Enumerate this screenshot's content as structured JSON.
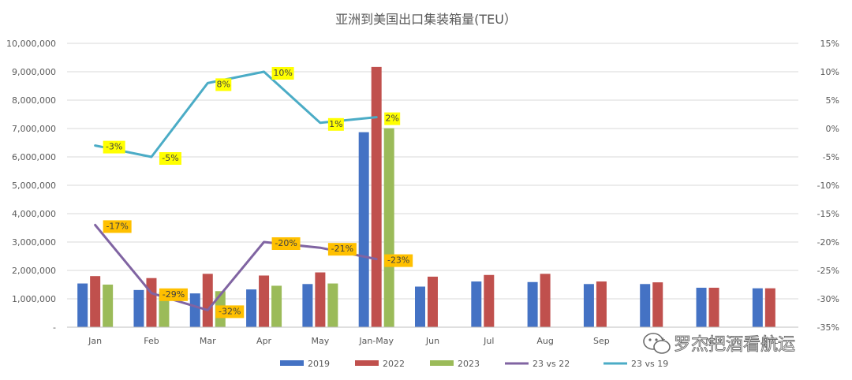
{
  "chart_data": {
    "type": "bar+line",
    "title": "亚洲到美国出口集装箱量(TEU）",
    "categories": [
      "Jan",
      "Feb",
      "Mar",
      "Apr",
      "May",
      "Jan-May",
      "Jun",
      "Jul",
      "Aug",
      "Sep",
      "Oct",
      "Nov",
      "Dec"
    ],
    "left_axis": {
      "min": 0,
      "max": 10000000,
      "step": 1000000,
      "tick_labels": [
        "-",
        "1,000,000",
        "2,000,000",
        "3,000,000",
        "4,000,000",
        "5,000,000",
        "6,000,000",
        "7,000,000",
        "8,000,000",
        "9,000,000",
        "10,000,000"
      ]
    },
    "right_axis": {
      "min": -35,
      "max": 15,
      "step": 5,
      "tick_labels": [
        "-35%",
        "-30%",
        "-25%",
        "-20%",
        "-15%",
        "-10%",
        "-5%",
        "0%",
        "5%",
        "10%",
        "15%"
      ]
    },
    "bar_series": [
      {
        "name": "2019",
        "color": "#4472C4",
        "values": [
          1540000,
          1310000,
          1190000,
          1330000,
          1520000,
          6870000,
          1430000,
          1610000,
          1590000,
          1520000,
          1520000,
          1390000,
          1370000
        ]
      },
      {
        "name": "2022",
        "color": "#C0504D",
        "values": [
          1800000,
          1730000,
          1880000,
          1820000,
          1930000,
          9170000,
          1780000,
          1840000,
          1880000,
          1610000,
          1580000,
          1390000,
          1370000
        ]
      },
      {
        "name": "2023",
        "color": "#9BBB59",
        "values": [
          1500000,
          1230000,
          1270000,
          1460000,
          1540000,
          7010000,
          null,
          null,
          null,
          null,
          null,
          null,
          null
        ]
      }
    ],
    "line_series": [
      {
        "name": "23 vs 22",
        "color": "#8064A2",
        "values": [
          -17,
          -29,
          -32,
          -20,
          -21,
          -23
        ],
        "labels": [
          "-17%",
          "-29%",
          "-32%",
          "-20%",
          "-21%",
          "-23%"
        ]
      },
      {
        "name": "23 vs 19",
        "color": "#4BACC6",
        "values": [
          -3,
          -5,
          8,
          10,
          1,
          2
        ],
        "labels": [
          "-3%",
          "-5%",
          "8%",
          "10%",
          "1%",
          "2%"
        ]
      }
    ],
    "label_colors": {
      "23 vs 22": "#FFC000",
      "23 vs 19": "#FFFF00"
    },
    "legend": [
      "2019",
      "2022",
      "2023",
      "23 vs 22",
      "23 vs 19"
    ],
    "grid": true
  },
  "watermark": {
    "text": "罗杰把酒看航运",
    "icon": "wechat-icon"
  }
}
